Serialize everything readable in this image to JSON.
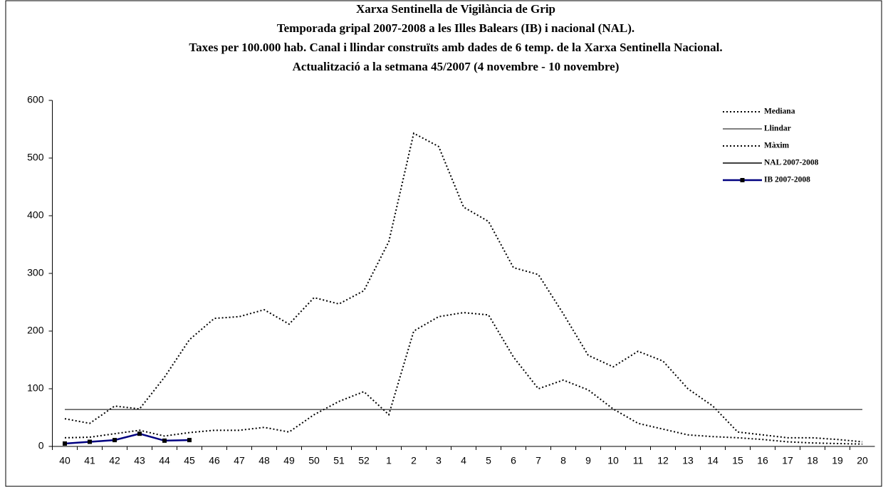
{
  "chart_data": {
    "type": "line",
    "title": [
      "Xarxa Sentinella de Vigilància de Grip",
      "Temporada gripal 2007-2008 a les Illes Balears (IB) i nacional (NAL).",
      "Taxes per 100.000 hab.  Canal i llindar construïts amb dades de 6 temp. de la Xarxa Sentinella Nacional.",
      "Actualització a la setmana 45/2007 (4 novembre - 10 novembre)"
    ],
    "categories": [
      "40",
      "41",
      "42",
      "43",
      "44",
      "45",
      "46",
      "47",
      "48",
      "49",
      "50",
      "51",
      "52",
      "1",
      "2",
      "3",
      "4",
      "5",
      "6",
      "7",
      "8",
      "9",
      "10",
      "11",
      "12",
      "13",
      "14",
      "15",
      "16",
      "17",
      "18",
      "19",
      "20"
    ],
    "series": [
      {
        "name": "Mediana",
        "color": "#000000",
        "line_style": "dotted",
        "values": [
          15,
          16,
          22,
          28,
          18,
          24,
          28,
          28,
          33,
          25,
          55,
          78,
          95,
          55,
          200,
          225,
          232,
          228,
          155,
          100,
          115,
          98,
          65,
          40,
          30,
          20,
          17,
          15,
          12,
          8,
          6,
          5,
          4
        ]
      },
      {
        "name": "Llindar",
        "color": "#000000",
        "line_style": "thin",
        "values": [
          64,
          64,
          64,
          64,
          64,
          64,
          64,
          64,
          64,
          64,
          64,
          64,
          64,
          64,
          64,
          64,
          64,
          64,
          64,
          64,
          64,
          64,
          64,
          64,
          64,
          64,
          64,
          64,
          64,
          64,
          64,
          64,
          64
        ]
      },
      {
        "name": "Màxim",
        "color": "#000000",
        "line_style": "dotted",
        "values": [
          48,
          40,
          70,
          65,
          120,
          185,
          222,
          225,
          237,
          212,
          258,
          247,
          270,
          355,
          543,
          520,
          415,
          390,
          310,
          298,
          230,
          158,
          138,
          165,
          148,
          100,
          70,
          25,
          20,
          15,
          15,
          12,
          8
        ]
      },
      {
        "name": "NAL 2007-2008",
        "color": "#000000",
        "line_style": "solid",
        "values": [
          null,
          null,
          null,
          null,
          null,
          null,
          null,
          null,
          null,
          null,
          null,
          null,
          null,
          null,
          null,
          null,
          null,
          null,
          null,
          null,
          null,
          null,
          null,
          null,
          null,
          null,
          null,
          null,
          null,
          null,
          null,
          null,
          null
        ]
      },
      {
        "name": "IB 2007-2008",
        "color": "#000080",
        "line_style": "solid",
        "marker": "square",
        "values": [
          5,
          8,
          11,
          22,
          10,
          11,
          null,
          null,
          null,
          null,
          null,
          null,
          null,
          null,
          null,
          null,
          null,
          null,
          null,
          null,
          null,
          null,
          null,
          null,
          null,
          null,
          null,
          null,
          null,
          null,
          null,
          null,
          null
        ]
      }
    ],
    "ylim": [
      0,
      600
    ],
    "yticks": [
      0,
      100,
      200,
      300,
      400,
      500,
      600
    ],
    "legend": "top-right"
  }
}
